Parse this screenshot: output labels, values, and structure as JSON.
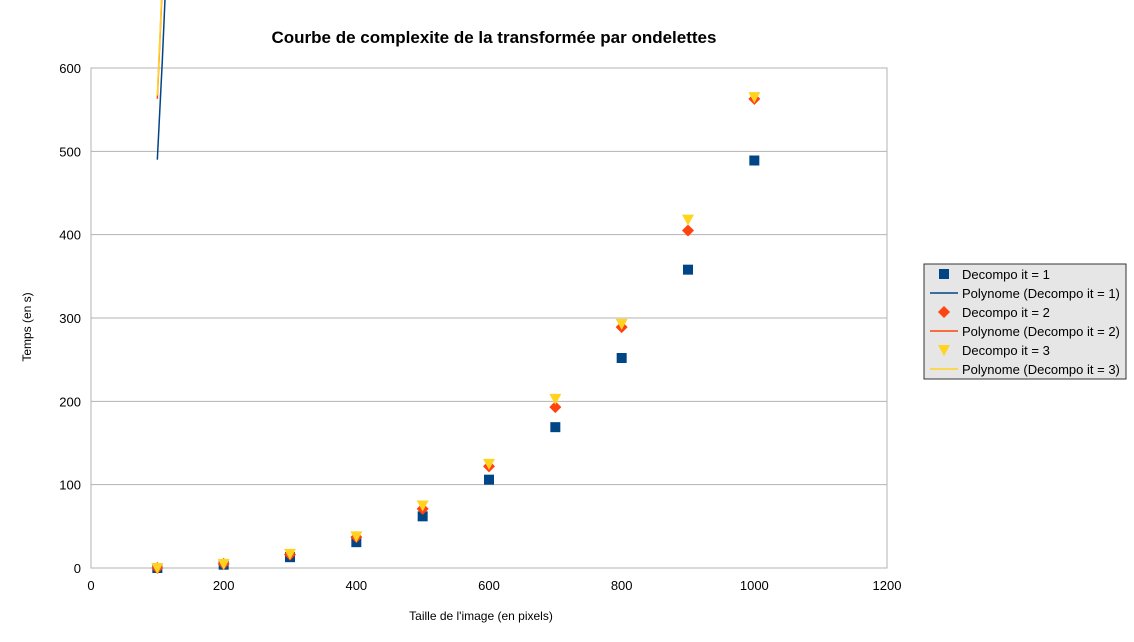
{
  "chart_data": {
    "type": "scatter",
    "title": "Courbe de complexite de la transformée par ondelettes",
    "xlabel": "Taille de l'image (en pixels)",
    "ylabel": "Temps (en s)",
    "xlim": [
      0,
      1200
    ],
    "ylim": [
      0,
      600
    ],
    "x_ticks": [
      0,
      200,
      400,
      600,
      800,
      1000,
      1200
    ],
    "y_ticks": [
      0,
      100,
      200,
      300,
      400,
      500,
      600
    ],
    "grid": "horizontal",
    "legend_position": "right",
    "series": [
      {
        "name": "Decompo it = 1",
        "marker": "square",
        "color": "#004586",
        "x": [
          100,
          200,
          300,
          400,
          500,
          600,
          700,
          800,
          900,
          1000
        ],
        "y": [
          0,
          4,
          13,
          31,
          62,
          106,
          169,
          252,
          358,
          489
        ]
      },
      {
        "name": "Decompo it = 2",
        "marker": "diamond",
        "color": "#ff420e",
        "x": [
          100,
          200,
          300,
          400,
          500,
          600,
          700,
          800,
          900,
          1000
        ],
        "y": [
          0,
          5,
          16,
          37,
          71,
          122,
          193,
          289,
          405,
          563
        ]
      },
      {
        "name": "Decompo it = 3",
        "marker": "triangle-down",
        "color": "#ffd320",
        "x": [
          100,
          200,
          300,
          400,
          500,
          600,
          700,
          800,
          900,
          1000
        ],
        "y": [
          0,
          5,
          17,
          38,
          75,
          125,
          203,
          293,
          418,
          565
        ]
      }
    ],
    "trendlines": [
      {
        "name": "Polynome (Decompo it = 1)",
        "color": "#004586",
        "coefficients": [
          0.00049,
          0,
          0,
          0
        ]
      },
      {
        "name": "Polynome (Decompo it = 2)",
        "color": "#ff420e",
        "coefficients": [
          0.000563,
          0,
          0,
          0
        ]
      },
      {
        "name": "Polynome (Decompo it = 3)",
        "color": "#ffd320",
        "coefficients": [
          0.000567,
          0,
          0,
          0
        ]
      }
    ]
  }
}
